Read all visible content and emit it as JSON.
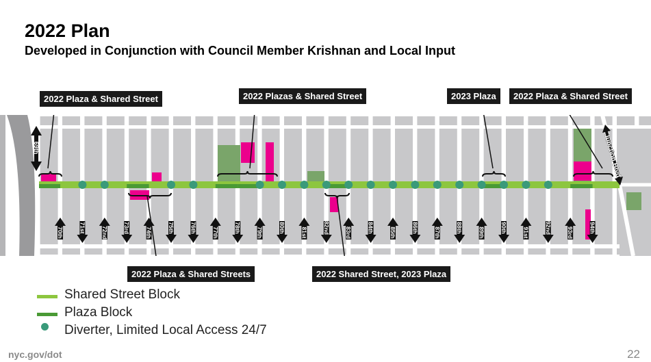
{
  "title": "2022 Plan",
  "subtitle": "Developed in Conjunction with Council Member Krishnan and Local Input",
  "colors": {
    "shared_street": "#8dc63f",
    "plaza": "#4a9a35",
    "diverter": "#3a9a7a",
    "pink": "#ec008c",
    "park": "#7aa56a",
    "block": "#c8c8ca"
  },
  "map": {
    "top_street_label": "69th",
    "diagonal_label": "Junction Blvd",
    "streets": [
      {
        "label": "70th",
        "dir": "up"
      },
      {
        "label": "71st",
        "dir": "down"
      },
      {
        "label": "72nd",
        "dir": "up"
      },
      {
        "label": "73rd",
        "dir": "down"
      },
      {
        "label": "74th",
        "dir": "up"
      },
      {
        "label": "75th",
        "dir": "down"
      },
      {
        "label": "76th",
        "dir": "down"
      },
      {
        "label": "77th",
        "dir": "up"
      },
      {
        "label": "78th",
        "dir": "down"
      },
      {
        "label": "79th",
        "dir": "up"
      },
      {
        "label": "80th",
        "dir": "down"
      },
      {
        "label": "81st",
        "dir": "up"
      },
      {
        "label": "82nd",
        "dir": "down"
      },
      {
        "label": "83rd",
        "dir": "up"
      },
      {
        "label": "84th",
        "dir": "down"
      },
      {
        "label": "85th",
        "dir": "up"
      },
      {
        "label": "86th",
        "dir": "down"
      },
      {
        "label": "87th",
        "dir": "up"
      },
      {
        "label": "88th",
        "dir": "down"
      },
      {
        "label": "89th",
        "dir": "up"
      },
      {
        "label": "90th",
        "dir": "down"
      },
      {
        "label": "91st",
        "dir": "up"
      },
      {
        "label": "92nd",
        "dir": "down"
      },
      {
        "label": "93rd",
        "dir": "up"
      },
      {
        "label": "94th",
        "dir": "down"
      }
    ],
    "diverter_streets": [
      "71st",
      "72nd",
      "75th",
      "76th",
      "79th",
      "80th",
      "81st",
      "82nd",
      "83rd",
      "84th",
      "85th",
      "86th",
      "87th",
      "88th",
      "89th",
      "90th",
      "91st",
      "92nd"
    ],
    "plaza_blocks": [
      "69th-70th",
      "73rd-74th",
      "77th-78th",
      "78th-79th",
      "82nd-83rd",
      "89th-90th",
      "93rd-94th"
    ]
  },
  "callouts": [
    {
      "label": "2022 Plaza & Shared Street"
    },
    {
      "label": "2022 Plazas & Shared Street"
    },
    {
      "label": "2023 Plaza"
    },
    {
      "label": "2022 Plaza & Shared Street"
    },
    {
      "label": "2022 Plaza & Shared Streets"
    },
    {
      "label": "2022 Shared Street, 2023 Plaza"
    }
  ],
  "legend": [
    {
      "label": "Shared Street Block"
    },
    {
      "label": "Plaza Block"
    },
    {
      "label": "Diverter, Limited Local Access 24/7"
    }
  ],
  "footer": "nyc.gov/dot",
  "page_number": "22"
}
